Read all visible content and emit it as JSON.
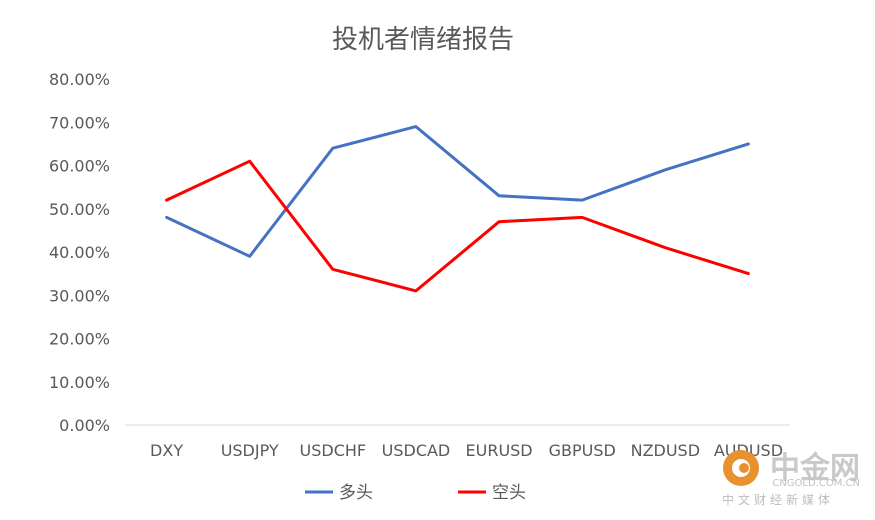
{
  "chart_data": {
    "type": "line",
    "title": "投机者情绪报告",
    "categories": [
      "DXY",
      "USDJPY",
      "USDCHF",
      "USDCAD",
      "EURUSD",
      "GBPUSD",
      "NZDUSD",
      "AUDUSD"
    ],
    "series": [
      {
        "name": "多头",
        "color": "#4472c4",
        "values": [
          48,
          39,
          64,
          69,
          53,
          52,
          59,
          65
        ]
      },
      {
        "name": "空头",
        "color": "#ff0000",
        "values": [
          52,
          61,
          36,
          31,
          47,
          48,
          41,
          35
        ]
      }
    ],
    "yticks": [
      "0.00%",
      "10.00%",
      "20.00%",
      "30.00%",
      "40.00%",
      "50.00%",
      "60.00%",
      "70.00%",
      "80.00%"
    ],
    "ylim": [
      0,
      80
    ],
    "grid": false,
    "legend_position": "bottom"
  },
  "watermark": {
    "brand": "中金网",
    "domain": "CNGOLD.COM.CN",
    "tagline": "中文财经新媒体",
    "logo_color": "#e8912d"
  }
}
